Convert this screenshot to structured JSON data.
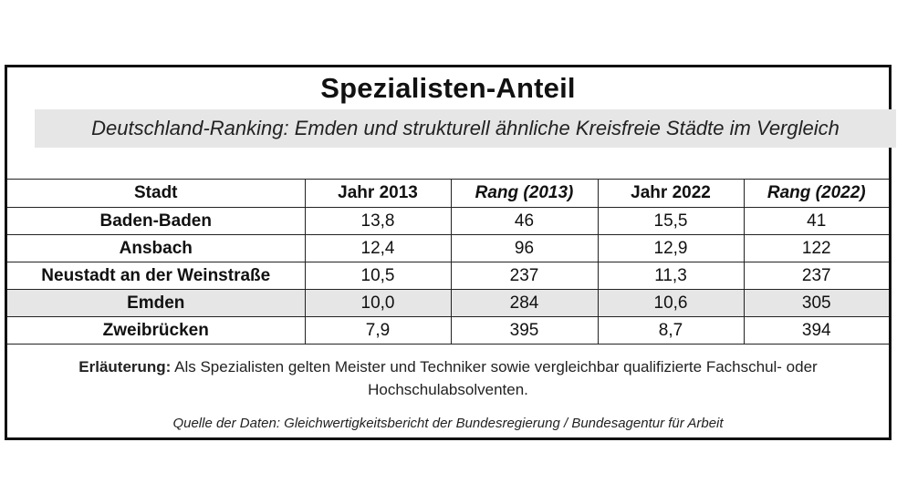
{
  "title": "Spezialisten-Anteil",
  "subtitle": "Deutschland-Ranking: Emden und strukturell ähnliche Kreisfreie Städte im Vergleich",
  "table": {
    "headers": [
      "Stadt",
      "Jahr 2013",
      "Rang (2013)",
      "Jahr 2022",
      "Rang (2022)"
    ],
    "rows": [
      {
        "city": "Baden-Baden",
        "y2013": "13,8",
        "r2013": "46",
        "y2022": "15,5",
        "r2022": "41"
      },
      {
        "city": "Ansbach",
        "y2013": "12,4",
        "r2013": "96",
        "y2022": "12,9",
        "r2022": "122"
      },
      {
        "city": "Neustadt an der Weinstraße",
        "y2013": "10,5",
        "r2013": "237",
        "y2022": "11,3",
        "r2022": "237"
      },
      {
        "city": "Emden",
        "y2013": "10,0",
        "r2013": "284",
        "y2022": "10,6",
        "r2022": "305"
      },
      {
        "city": "Zweibrücken",
        "y2013": "7,9",
        "r2013": "395",
        "y2022": "8,7",
        "r2022": "394"
      }
    ]
  },
  "note": {
    "label": "Erläuterung:",
    "text": " Als Spezialisten gelten Meister und Techniker sowie vergleichbar qualifizierte Fachschul- oder Hochschulabsolventen."
  },
  "source": "Quelle der Daten: Gleichwertigkeitsbericht der Bundesregierung / Bundesagentur für Arbeit",
  "colors": {
    "border": "#111111",
    "highlight": "#e6e6e6"
  }
}
